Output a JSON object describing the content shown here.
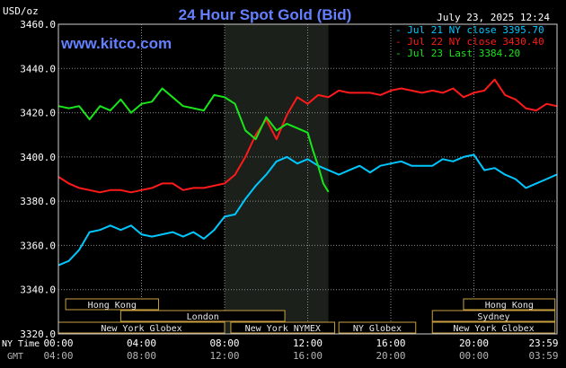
{
  "header": {
    "title": "24 Hour Spot Gold (Bid)",
    "unit": "USD/oz",
    "site": "www.kitco.com",
    "timestamp": "July 23, 2025 12:24"
  },
  "legend": [
    {
      "text": "Jul 21 NY close 3395.70",
      "color": "#00c8ff"
    },
    {
      "text": "Jul 22 NY close 3430.40",
      "color": "#ff1a1a"
    },
    {
      "text": "Jul 23 Last 3384.20",
      "color": "#19e619"
    }
  ],
  "time_axis": {
    "ny_label": "NY Time",
    "gmt_label": "GMT",
    "ny_ticks": [
      "00:00",
      "04:00",
      "08:00",
      "12:00",
      "16:00",
      "20:00",
      "23:59"
    ],
    "gmt_ticks": [
      "04:00",
      "08:00",
      "12:00",
      "16:00",
      "20:00",
      "00:00",
      "03:59"
    ]
  },
  "sessions": [
    {
      "label": "Hong Kong",
      "row": 0,
      "start": 0.35,
      "end": 4.82
    },
    {
      "label": "Hong Kong",
      "row": 0,
      "start": 19.5,
      "end": 23.9
    },
    {
      "label": "London",
      "row": 1,
      "start": 3.0,
      "end": 10.9
    },
    {
      "label": "Sydney",
      "row": 1,
      "start": 18.0,
      "end": 23.9
    },
    {
      "label": "New York Globex",
      "row": 2,
      "start": 0.0,
      "end": 8.0
    },
    {
      "label": "New York NYMEX",
      "row": 2,
      "start": 8.3,
      "end": 13.3
    },
    {
      "label": "NY Globex",
      "row": 2,
      "start": 13.5,
      "end": 17.2
    },
    {
      "label": "New York Globex",
      "row": 2,
      "start": 18.0,
      "end": 23.9
    }
  ],
  "colors": {
    "background": "#000000",
    "plot_border": "#d0d0d0",
    "grid": "#8c8c8c",
    "shade": "#1b201b",
    "title": "#6480ff",
    "site": "#6480ff",
    "session_fill": "#000000",
    "session_border": "#c8a040",
    "session_text": "#e8e8e8",
    "ny_axis_text": "#ffffff",
    "gmt_axis_text": "#b4b4b4"
  },
  "chart_data": {
    "type": "line",
    "title": "24 Hour Spot Gold (Bid)",
    "ylabel": "USD/oz",
    "ylim": [
      3320,
      3460
    ],
    "yticks": [
      "3460.0",
      "3440.0",
      "3420.0",
      "3400.0",
      "3380.0",
      "3360.0",
      "3340.0",
      "3320.0"
    ],
    "xlim": [
      0,
      24
    ],
    "x_unit": "hours (NY Time)",
    "shaded_range": [
      8,
      13
    ],
    "grid": true,
    "legend_position": "top-right",
    "series": [
      {
        "name": "Jul 21 NY close 3395.70",
        "color": "#00c8ff",
        "x": [
          0,
          0.5,
          1,
          1.5,
          2,
          2.5,
          3,
          3.5,
          4,
          4.5,
          5,
          5.5,
          6,
          6.5,
          7,
          7.5,
          8,
          8.5,
          9,
          9.5,
          10,
          10.5,
          11,
          11.5,
          12,
          12.5,
          13,
          13.5,
          14,
          14.5,
          15,
          15.5,
          16,
          16.5,
          17,
          17.5,
          18,
          18.5,
          19,
          19.5,
          20,
          20.5,
          21,
          21.5,
          22,
          22.5,
          23,
          23.5,
          23.98
        ],
        "y": [
          3351,
          3353,
          3358,
          3366,
          3367,
          3369,
          3367,
          3369,
          3365,
          3364,
          3365,
          3366,
          3364,
          3366,
          3363,
          3367,
          3373,
          3374,
          3381,
          3387,
          3392,
          3398,
          3400,
          3397,
          3399,
          3396,
          3394,
          3392,
          3394,
          3396,
          3393,
          3396,
          3397,
          3398,
          3396,
          3396,
          3396,
          3399,
          3398,
          3400,
          3401,
          3394,
          3395,
          3392,
          3390,
          3386,
          3388,
          3390,
          3392
        ]
      },
      {
        "name": "Jul 22 NY close 3430.40",
        "color": "#ff1a1a",
        "x": [
          0,
          0.5,
          1,
          1.5,
          2,
          2.5,
          3,
          3.5,
          4,
          4.5,
          5,
          5.5,
          6,
          6.5,
          7,
          7.5,
          8,
          8.5,
          9,
          9.5,
          10,
          10.5,
          11,
          11.5,
          12,
          12.5,
          13,
          13.5,
          14,
          14.5,
          15,
          15.5,
          16,
          16.5,
          17,
          17.5,
          18,
          18.5,
          19,
          19.5,
          20,
          20.5,
          21,
          21.5,
          22,
          22.5,
          23,
          23.5,
          23.98
        ],
        "y": [
          3391,
          3388,
          3386,
          3385,
          3384,
          3385,
          3385,
          3384,
          3385,
          3386,
          3388,
          3388,
          3385,
          3386,
          3386,
          3387,
          3388,
          3392,
          3400,
          3410,
          3417,
          3408,
          3419,
          3427,
          3424,
          3428,
          3427,
          3430,
          3429,
          3429,
          3429,
          3428,
          3430,
          3431,
          3430,
          3429,
          3430,
          3429,
          3431,
          3427,
          3429,
          3430,
          3435,
          3428,
          3426,
          3422,
          3421,
          3424,
          3423
        ]
      },
      {
        "name": "Jul 23 Last 3384.20",
        "color": "#19e619",
        "x": [
          0,
          0.5,
          1,
          1.5,
          2,
          2.5,
          3,
          3.5,
          4,
          4.5,
          5,
          5.5,
          6,
          6.5,
          7,
          7.5,
          8,
          8.5,
          9,
          9.5,
          10,
          10.5,
          11,
          11.5,
          12,
          12.25,
          12.5,
          12.75,
          13
        ],
        "y": [
          3423,
          3422,
          3423,
          3417,
          3423,
          3421,
          3426,
          3420,
          3424,
          3425,
          3431,
          3427,
          3423,
          3422,
          3421,
          3428,
          3427,
          3424,
          3412,
          3408,
          3418,
          3412,
          3415,
          3413,
          3411,
          3403,
          3396,
          3388,
          3384.2
        ]
      }
    ]
  }
}
